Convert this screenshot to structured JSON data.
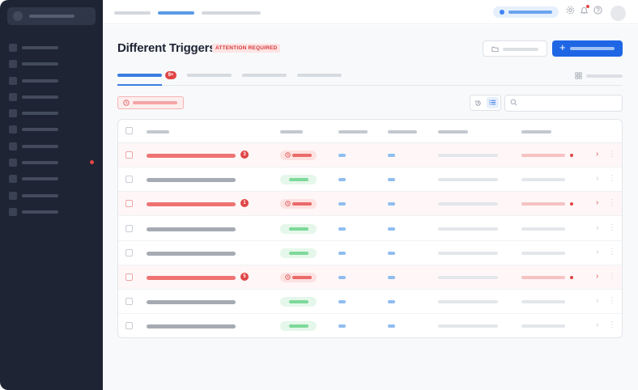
{
  "page": {
    "title": "Different Triggers",
    "attention_label": "ATTENTION REQUIRED"
  },
  "tabs": {
    "active_badge": "9+"
  },
  "search": {
    "placeholder": ""
  },
  "colors": {
    "sidebar_bg": "#1e2433",
    "primary": "#1f66e5",
    "alert": "#e04545",
    "success": "#7ed99a"
  },
  "icons": {
    "top": [
      "settings-icon",
      "bell-icon",
      "help-icon"
    ],
    "toolbar": [
      "history-icon",
      "list-icon",
      "search-icon"
    ]
  },
  "table": {
    "rows": [
      {
        "state": "alert",
        "count": "3"
      },
      {
        "state": "ok",
        "count": ""
      },
      {
        "state": "alert",
        "count": "1"
      },
      {
        "state": "ok",
        "count": ""
      },
      {
        "state": "ok",
        "count": ""
      },
      {
        "state": "alert",
        "count": "5"
      },
      {
        "state": "ok",
        "count": ""
      },
      {
        "state": "ok",
        "count": ""
      }
    ]
  }
}
